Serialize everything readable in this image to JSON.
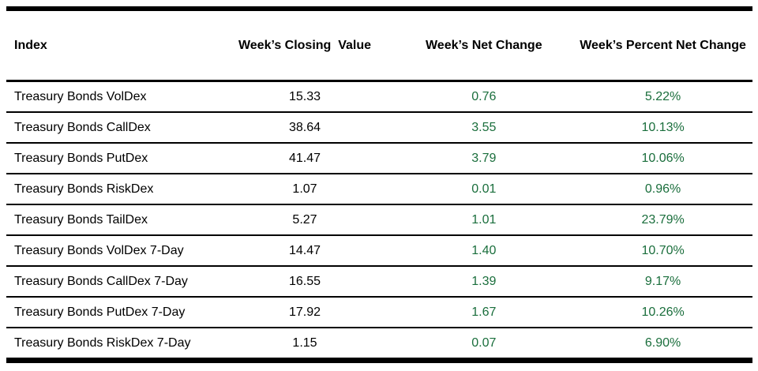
{
  "table": {
    "columns": [
      {
        "id": "index",
        "label": "Index"
      },
      {
        "id": "closing_value",
        "label": "Week’s Closing  Value"
      },
      {
        "id": "net_change",
        "label": "Week’s Net Change"
      },
      {
        "id": "percent_net_change",
        "label": "Week’s Percent Net Change"
      }
    ],
    "rows": [
      {
        "index": "Treasury Bonds VolDex",
        "closing_value": "15.33",
        "net_change": "0.76",
        "percent_net_change": "5.22%"
      },
      {
        "index": "Treasury Bonds CallDex",
        "closing_value": "38.64",
        "net_change": "3.55",
        "percent_net_change": "10.13%"
      },
      {
        "index": "Treasury Bonds PutDex",
        "closing_value": "41.47",
        "net_change": "3.79",
        "percent_net_change": "10.06%"
      },
      {
        "index": "Treasury Bonds RiskDex",
        "closing_value": "1.07",
        "net_change": "0.01",
        "percent_net_change": "0.96%"
      },
      {
        "index": "Treasury Bonds TailDex",
        "closing_value": "5.27",
        "net_change": "1.01",
        "percent_net_change": "23.79%"
      },
      {
        "index": "Treasury Bonds VolDex 7-Day",
        "closing_value": "14.47",
        "net_change": "1.40",
        "percent_net_change": "10.70%"
      },
      {
        "index": "Treasury Bonds CallDex 7-Day",
        "closing_value": "16.55",
        "net_change": "1.39",
        "percent_net_change": "9.17%"
      },
      {
        "index": "Treasury Bonds PutDex 7-Day",
        "closing_value": "17.92",
        "net_change": "1.67",
        "percent_net_change": "10.26%"
      },
      {
        "index": "Treasury Bonds RiskDex 7-Day",
        "closing_value": "1.15",
        "net_change": "0.07",
        "percent_net_change": "6.90%"
      }
    ]
  },
  "colors": {
    "positive_change": "#1a6e3c",
    "text": "#000000",
    "border": "#000000"
  }
}
